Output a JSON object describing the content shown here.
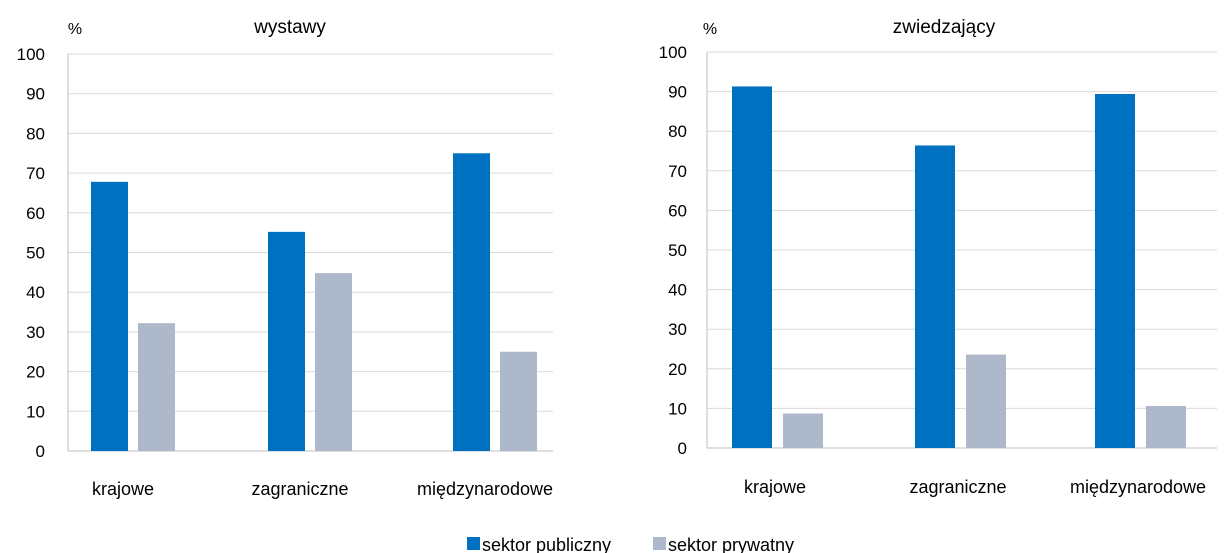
{
  "colors": {
    "public": "#0070C0",
    "private": "#ADB9CA",
    "grid": "#D9D9D9",
    "axis": "#BFBFBF"
  },
  "legend": {
    "public_label": "sektor publiczny",
    "private_label": "sektor prywatny",
    "position": "bottom-center"
  },
  "chart_data": [
    {
      "type": "bar",
      "title": "wystawy",
      "ylabel": "%",
      "xlabel": "",
      "ylim": [
        0,
        100
      ],
      "yticks": [
        0,
        10,
        20,
        30,
        40,
        50,
        60,
        70,
        80,
        90,
        100
      ],
      "grid": true,
      "categories": [
        "krajowe",
        "zagraniczne",
        "międzynarodowe"
      ],
      "series": [
        {
          "name": "sektor publiczny",
          "values": [
            67.8,
            55.2,
            75.0
          ]
        },
        {
          "name": "sektor prywatny",
          "values": [
            32.2,
            44.8,
            25.0
          ]
        }
      ]
    },
    {
      "type": "bar",
      "title": "zwiedzający",
      "ylabel": "%",
      "xlabel": "",
      "ylim": [
        0,
        100
      ],
      "yticks": [
        0,
        10,
        20,
        30,
        40,
        50,
        60,
        70,
        80,
        90,
        100
      ],
      "grid": true,
      "categories": [
        "krajowe",
        "zagraniczne",
        "międzynarodowe"
      ],
      "series": [
        {
          "name": "sektor publiczny",
          "values": [
            91.3,
            76.4,
            89.4
          ]
        },
        {
          "name": "sektor prywatny",
          "values": [
            8.7,
            23.6,
            10.6
          ]
        }
      ]
    }
  ]
}
